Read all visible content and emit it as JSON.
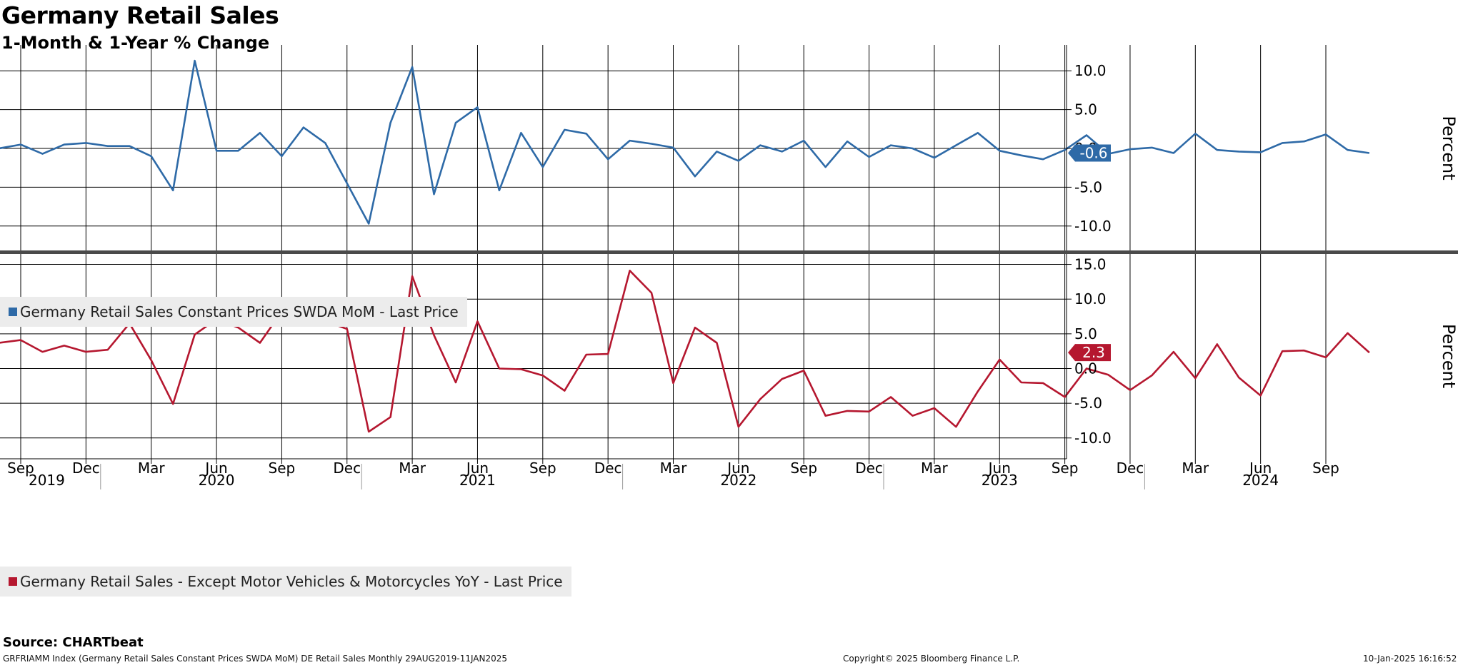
{
  "header": {
    "title": "Germany Retail Sales",
    "subtitle": "1-Month & 1-Year % Change"
  },
  "footer": {
    "source": "Source: CHARTbeat",
    "index_info": "GRFRIAMM Index (Germany Retail Sales Constant Prices SWDA MoM) DE Retail Sales  Monthly 29AUG2019-11JAN2025",
    "copyright": "Copyright© 2025 Bloomberg Finance L.P.",
    "timestamp": "10-Jan-2025 16:16:52"
  },
  "chart_data": [
    {
      "type": "line",
      "ylabel": "Percent",
      "ylim": [
        -12.5,
        13.5
      ],
      "yticks": [
        "10.0",
        "5.0",
        "0.0",
        "-5.0",
        "-10.0"
      ],
      "grid": true,
      "legend": "bottom-left",
      "color": "#2e6aa7",
      "last_value_label": "-0.6",
      "series": [
        {
          "name": "Germany Retail Sales Constant Prices SWDA MoM - Last Price",
          "x": [
            "2019-08",
            "2019-09",
            "2019-10",
            "2019-11",
            "2019-12",
            "2020-01",
            "2020-02",
            "2020-03",
            "2020-04",
            "2020-05",
            "2020-06",
            "2020-07",
            "2020-08",
            "2020-09",
            "2020-10",
            "2020-11",
            "2020-12",
            "2021-01",
            "2021-02",
            "2021-03",
            "2021-04",
            "2021-05",
            "2021-06",
            "2021-07",
            "2021-08",
            "2021-09",
            "2021-10",
            "2021-11",
            "2021-12",
            "2022-01",
            "2022-02",
            "2022-03",
            "2022-04",
            "2022-05",
            "2022-06",
            "2022-07",
            "2022-08",
            "2022-09",
            "2022-10",
            "2022-11",
            "2022-12",
            "2023-01",
            "2023-02",
            "2023-03",
            "2023-04",
            "2023-05",
            "2023-06",
            "2023-07",
            "2023-08",
            "2023-09",
            "2023-10",
            "2023-11",
            "2023-12",
            "2024-01",
            "2024-02",
            "2024-03",
            "2024-04",
            "2024-05",
            "2024-06",
            "2024-07",
            "2024-08",
            "2024-09",
            "2024-10",
            "2024-11"
          ],
          "values": [
            0.0,
            0.5,
            -0.7,
            0.5,
            0.7,
            0.3,
            0.3,
            -1.0,
            -5.4,
            11.3,
            -0.3,
            -0.3,
            2.0,
            -1.0,
            2.7,
            0.7,
            -4.5,
            -9.7,
            3.3,
            10.5,
            -5.9,
            3.3,
            5.3,
            -5.4,
            2.0,
            -2.4,
            2.4,
            1.9,
            -1.4,
            1.0,
            0.6,
            0.1,
            -3.6,
            -0.4,
            -1.6,
            0.4,
            -0.4,
            1.0,
            -2.4,
            0.9,
            -1.1,
            0.4,
            0.0,
            -1.2,
            0.4,
            2.0,
            -0.3,
            -0.9,
            -1.4,
            -0.2,
            1.7,
            -0.7,
            -0.1,
            0.1,
            -0.6,
            1.9,
            -0.2,
            -0.4,
            -0.5,
            0.7,
            0.9,
            1.8,
            -0.2,
            -0.6
          ]
        }
      ]
    },
    {
      "type": "line",
      "ylabel": "Percent",
      "ylim": [
        -12.5,
        16.5
      ],
      "yticks": [
        "15.0",
        "10.0",
        "5.0",
        "0.0",
        "-5.0",
        "-10.0"
      ],
      "grid": true,
      "legend": "bottom-left",
      "color": "#b5172f",
      "last_value_label": "2.3",
      "series": [
        {
          "name": "Germany Retail Sales - Except Motor Vehicles & Motorcycles YoY - Last Price",
          "x": [
            "2019-08",
            "2019-09",
            "2019-10",
            "2019-11",
            "2019-12",
            "2020-01",
            "2020-02",
            "2020-03",
            "2020-04",
            "2020-05",
            "2020-06",
            "2020-07",
            "2020-08",
            "2020-09",
            "2020-10",
            "2020-11",
            "2020-12",
            "2021-01",
            "2021-02",
            "2021-03",
            "2021-04",
            "2021-05",
            "2021-06",
            "2021-07",
            "2021-08",
            "2021-09",
            "2021-10",
            "2021-11",
            "2021-12",
            "2022-01",
            "2022-02",
            "2022-03",
            "2022-04",
            "2022-05",
            "2022-06",
            "2022-07",
            "2022-08",
            "2022-09",
            "2022-10",
            "2022-11",
            "2022-12",
            "2023-01",
            "2023-02",
            "2023-03",
            "2023-04",
            "2023-05",
            "2023-06",
            "2023-07",
            "2023-08",
            "2023-09",
            "2023-10",
            "2023-11",
            "2023-12",
            "2024-01",
            "2024-02",
            "2024-03",
            "2024-04",
            "2024-05",
            "2024-06",
            "2024-07",
            "2024-08",
            "2024-09",
            "2024-10",
            "2024-11"
          ],
          "values": [
            3.7,
            4.1,
            2.4,
            3.3,
            2.4,
            2.7,
            6.5,
            1.2,
            -5.1,
            4.9,
            7.1,
            5.9,
            3.7,
            8.2,
            10.0,
            6.8,
            5.7,
            -9.1,
            -7.0,
            13.3,
            4.8,
            -2.0,
            6.8,
            0.0,
            -0.1,
            -1.0,
            -3.2,
            2.0,
            2.1,
            14.1,
            10.9,
            -2.1,
            5.9,
            3.7,
            -8.4,
            -4.4,
            -1.5,
            -0.3,
            -6.8,
            -6.1,
            -6.2,
            -4.1,
            -6.8,
            -5.7,
            -8.4,
            -3.3,
            1.3,
            -2.0,
            -2.1,
            -4.1,
            0.0,
            -0.9,
            -3.1,
            -1.0,
            2.4,
            -1.4,
            3.5,
            -1.3,
            -3.9,
            2.5,
            2.6,
            1.6,
            5.1,
            2.3
          ]
        }
      ]
    }
  ],
  "x_axis": {
    "months": [
      "Sep",
      "Dec",
      "Mar",
      "Jun",
      "Sep",
      "Dec",
      "Mar",
      "Jun",
      "Sep",
      "Dec",
      "Mar",
      "Jun",
      "Sep",
      "Dec",
      "Mar",
      "Jun",
      "Sep",
      "Dec",
      "Mar",
      "Jun",
      "Sep"
    ],
    "month_dates": [
      "2019-09",
      "2019-12",
      "2020-03",
      "2020-06",
      "2020-09",
      "2020-12",
      "2021-03",
      "2021-06",
      "2021-09",
      "2021-12",
      "2022-03",
      "2022-06",
      "2022-09",
      "2022-12",
      "2023-03",
      "2023-06",
      "2023-09",
      "2023-12",
      "2024-03",
      "2024-06",
      "2024-09"
    ],
    "years": [
      "2019",
      "2020",
      "2021",
      "2022",
      "2023",
      "2024"
    ],
    "year_dates": [
      "2019-10",
      "2020-06",
      "2021-06",
      "2022-06",
      "2023-06",
      "2024-06"
    ]
  }
}
